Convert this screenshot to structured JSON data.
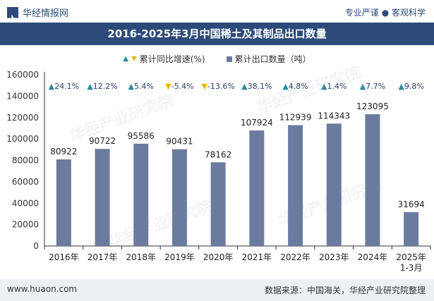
{
  "header": {
    "logo_text": "华经情报网",
    "tagline": "专业严谨 ● 客观科学"
  },
  "footer": {
    "website": "www.huaon.com",
    "source": "数据来源：中国海关，华经产业研究院整理"
  },
  "colors": {
    "bar": "#6b7ba0",
    "title_bg": "#2c4a7a",
    "up": "#2a8a9a",
    "down": "#e5b800"
  },
  "chart_data": {
    "type": "bar",
    "title": "2016-2025年3月中国稀土及其制品出口数量",
    "legend": [
      {
        "name": "累计同比增速(%)",
        "marker": "triangle"
      },
      {
        "name": "累计出口数量（吨）",
        "marker": "square"
      }
    ],
    "categories": [
      "2016年",
      "2017年",
      "2018年",
      "2019年",
      "2020年",
      "2021年",
      "2022年",
      "2023年",
      "2024年",
      "2025年 1-3月"
    ],
    "series": [
      {
        "name": "累计出口数量（吨）",
        "values": [
          80922,
          90722,
          95586,
          90431,
          78162,
          107924,
          112939,
          114343,
          123095,
          31694
        ]
      },
      {
        "name": "累计同比增速(%)",
        "values": [
          24.1,
          12.2,
          5.4,
          -5.4,
          -13.6,
          38.1,
          4.8,
          1.4,
          7.7,
          9.8
        ]
      }
    ],
    "growth_labels": [
      "24.1%",
      "12.2%",
      "5.4%",
      "-5.4%",
      "-13.6%",
      "38.1%",
      "4.8%",
      "1.4%",
      "7.7%",
      "9.8%"
    ],
    "yticks": [
      "0",
      "20000",
      "40000",
      "60000",
      "80000",
      "100000",
      "120000",
      "140000",
      "160000"
    ],
    "ylim": [
      0,
      160000
    ],
    "grid": false
  }
}
